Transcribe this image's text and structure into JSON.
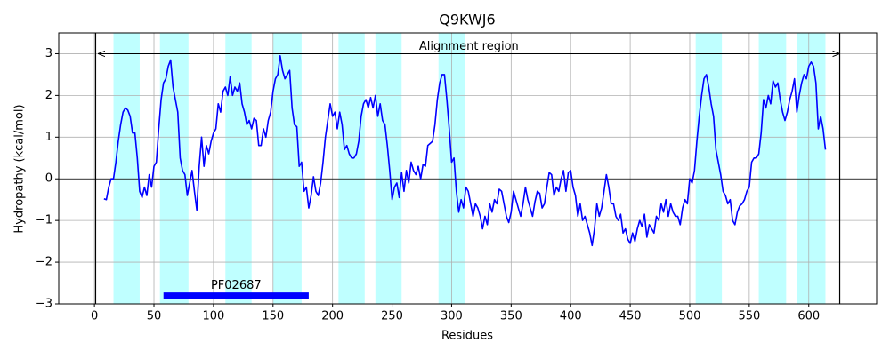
{
  "chart_data": {
    "type": "line",
    "title": "Q9KWJ6",
    "xlabel": "Residues",
    "ylabel": "Hydropathy (kcal/mol)",
    "color": "#0000ff",
    "region_color": "#bfffff",
    "grid": true,
    "xlim": [
      -30,
      657
    ],
    "ylim": [
      -3,
      3.5
    ],
    "xticks": [
      0,
      50,
      100,
      150,
      200,
      250,
      300,
      350,
      400,
      450,
      500,
      550,
      600
    ],
    "yticks": [
      {
        "value": -3,
        "label": "−3"
      },
      {
        "value": -2,
        "label": "−2"
      },
      {
        "value": -1,
        "label": "−1"
      },
      0,
      1,
      2,
      3
    ],
    "hline": 0,
    "vlines": [
      1,
      626
    ],
    "regions": [
      [
        16,
        38
      ],
      [
        55,
        79
      ],
      [
        110,
        132
      ],
      [
        150,
        174
      ],
      [
        205,
        227
      ],
      [
        236,
        258
      ],
      [
        289,
        311
      ],
      [
        505,
        527
      ],
      [
        558,
        581
      ],
      [
        590,
        614
      ]
    ],
    "alignment_region": {
      "label": "Alignment region",
      "start": 3,
      "end": 626,
      "y": 3
    },
    "domain": {
      "label": "PF02687",
      "start": 58,
      "end": 180,
      "y": -2.8
    },
    "x": [
      8,
      10,
      12,
      14,
      16,
      18,
      20,
      22,
      24,
      26,
      28,
      30,
      32,
      34,
      36,
      38,
      40,
      42,
      44,
      46,
      48,
      50,
      52,
      54,
      56,
      58,
      60,
      62,
      64,
      66,
      68,
      70,
      72,
      74,
      76,
      78,
      80,
      82,
      84,
      86,
      88,
      90,
      92,
      94,
      96,
      98,
      100,
      102,
      104,
      106,
      108,
      110,
      112,
      114,
      116,
      118,
      120,
      122,
      124,
      126,
      128,
      130,
      132,
      134,
      136,
      138,
      140,
      142,
      144,
      146,
      148,
      150,
      152,
      154,
      156,
      158,
      160,
      162,
      164,
      166,
      168,
      170,
      172,
      174,
      176,
      178,
      180,
      182,
      184,
      186,
      188,
      190,
      192,
      194,
      196,
      198,
      200,
      202,
      204,
      206,
      208,
      210,
      212,
      214,
      216,
      218,
      220,
      222,
      224,
      226,
      228,
      230,
      232,
      234,
      236,
      238,
      240,
      242,
      244,
      246,
      248,
      250,
      252,
      254,
      256,
      258,
      260,
      262,
      264,
      266,
      268,
      270,
      272,
      274,
      276,
      278,
      280,
      282,
      284,
      286,
      288,
      290,
      292,
      294,
      296,
      298,
      300,
      302,
      304,
      306,
      308,
      310,
      312,
      314,
      316,
      318,
      320,
      322,
      324,
      326,
      328,
      330,
      332,
      334,
      336,
      338,
      340,
      342,
      344,
      346,
      348,
      350,
      352,
      354,
      356,
      358,
      360,
      362,
      364,
      366,
      368,
      370,
      372,
      374,
      376,
      378,
      380,
      382,
      384,
      386,
      388,
      390,
      392,
      394,
      396,
      398,
      400,
      402,
      404,
      406,
      408,
      410,
      412,
      414,
      416,
      418,
      420,
      422,
      424,
      426,
      428,
      430,
      432,
      434,
      436,
      438,
      440,
      442,
      444,
      446,
      448,
      450,
      452,
      454,
      456,
      458,
      460,
      462,
      464,
      466,
      468,
      470,
      472,
      474,
      476,
      478,
      480,
      482,
      484,
      486,
      488,
      490,
      492,
      494,
      496,
      498,
      500,
      502,
      504,
      506,
      508,
      510,
      512,
      514,
      516,
      518,
      520,
      522,
      524,
      526,
      528,
      530,
      532,
      534,
      536,
      538,
      540,
      542,
      544,
      546,
      548,
      550,
      552,
      554,
      556,
      558,
      560,
      562,
      564,
      566,
      568,
      570,
      572,
      574,
      576,
      578,
      580,
      582,
      584,
      586,
      588,
      590,
      592,
      594,
      596,
      598,
      600,
      602,
      604,
      606,
      608,
      610,
      612,
      614
    ],
    "values": [
      -0.48,
      -0.5,
      -0.2,
      0.0,
      0.0,
      0.4,
      0.9,
      1.3,
      1.6,
      1.7,
      1.65,
      1.5,
      1.1,
      1.1,
      0.5,
      -0.3,
      -0.45,
      -0.2,
      -0.4,
      0.1,
      -0.2,
      0.3,
      0.4,
      1.2,
      1.9,
      2.3,
      2.4,
      2.7,
      2.85,
      2.2,
      1.9,
      1.6,
      0.5,
      0.2,
      0.1,
      -0.4,
      -0.1,
      0.2,
      -0.3,
      -0.75,
      0.3,
      1.0,
      0.3,
      0.8,
      0.6,
      0.9,
      1.1,
      1.2,
      1.8,
      1.6,
      2.1,
      2.2,
      2.0,
      2.45,
      2.0,
      2.2,
      2.1,
      2.3,
      1.8,
      1.6,
      1.3,
      1.4,
      1.2,
      1.45,
      1.4,
      0.8,
      0.8,
      1.2,
      1.0,
      1.4,
      1.6,
      2.1,
      2.4,
      2.5,
      2.95,
      2.6,
      2.4,
      2.5,
      2.6,
      1.7,
      1.3,
      1.25,
      0.3,
      0.4,
      -0.3,
      -0.2,
      -0.7,
      -0.4,
      0.05,
      -0.3,
      -0.4,
      -0.1,
      0.4,
      1.0,
      1.4,
      1.8,
      1.5,
      1.6,
      1.2,
      1.6,
      1.3,
      0.7,
      0.8,
      0.6,
      0.5,
      0.5,
      0.6,
      0.9,
      1.5,
      1.8,
      1.9,
      1.7,
      1.95,
      1.7,
      2.0,
      1.5,
      1.8,
      1.4,
      1.3,
      0.8,
      0.2,
      -0.5,
      -0.2,
      -0.1,
      -0.45,
      0.15,
      -0.3,
      0.2,
      -0.1,
      0.4,
      0.2,
      0.1,
      0.3,
      0.0,
      0.35,
      0.3,
      0.8,
      0.85,
      0.9,
      1.3,
      1.9,
      2.3,
      2.5,
      2.5,
      1.9,
      1.2,
      0.4,
      0.5,
      -0.3,
      -0.8,
      -0.5,
      -0.7,
      -0.2,
      -0.3,
      -0.6,
      -0.9,
      -0.6,
      -0.7,
      -0.9,
      -1.2,
      -0.9,
      -1.1,
      -0.6,
      -0.8,
      -0.5,
      -0.6,
      -0.25,
      -0.3,
      -0.6,
      -0.9,
      -1.05,
      -0.8,
      -0.3,
      -0.5,
      -0.7,
      -0.9,
      -0.6,
      -0.2,
      -0.5,
      -0.7,
      -0.9,
      -0.55,
      -0.3,
      -0.35,
      -0.7,
      -0.6,
      -0.2,
      0.15,
      0.1,
      -0.4,
      -0.2,
      -0.3,
      0.0,
      0.2,
      -0.3,
      0.15,
      0.2,
      -0.2,
      -0.4,
      -0.9,
      -0.6,
      -1.0,
      -0.9,
      -1.1,
      -1.3,
      -1.6,
      -1.2,
      -0.6,
      -0.9,
      -0.7,
      -0.3,
      0.1,
      -0.2,
      -0.6,
      -0.6,
      -0.9,
      -1.0,
      -0.85,
      -1.3,
      -1.2,
      -1.45,
      -1.55,
      -1.3,
      -1.5,
      -1.2,
      -1.0,
      -1.15,
      -0.85,
      -1.4,
      -1.1,
      -1.2,
      -1.3,
      -0.9,
      -1.0,
      -0.6,
      -0.8,
      -0.5,
      -0.9,
      -0.6,
      -0.8,
      -0.9,
      -0.9,
      -1.1,
      -0.7,
      -0.5,
      -0.6,
      0.0,
      -0.1,
      0.2,
      0.9,
      1.5,
      2.0,
      2.4,
      2.5,
      2.2,
      1.8,
      1.5,
      0.7,
      0.4,
      0.1,
      -0.3,
      -0.4,
      -0.6,
      -0.5,
      -1.0,
      -1.1,
      -0.8,
      -0.65,
      -0.6,
      -0.5,
      -0.3,
      -0.2,
      0.4,
      0.5,
      0.5,
      0.6,
      1.1,
      1.9,
      1.7,
      2.0,
      1.8,
      2.35,
      2.2,
      2.3,
      1.9,
      1.6,
      1.4,
      1.6,
      1.9,
      2.1,
      2.4,
      1.6,
      2.0,
      2.3,
      2.5,
      2.4,
      2.7,
      2.8,
      2.7,
      2.3,
      1.2,
      1.5,
      1.2,
      0.7
    ]
  }
}
